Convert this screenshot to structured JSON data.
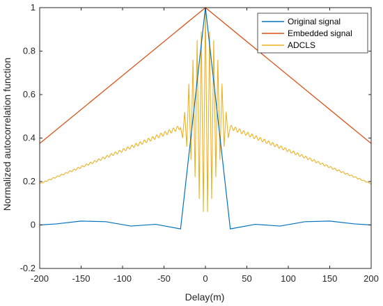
{
  "chart_data": {
    "type": "line",
    "title": "",
    "xlabel": "Delay(m)",
    "ylabel": "Normalized autocorrelation function",
    "xlim": [
      -200,
      200
    ],
    "ylim": [
      -0.2,
      1
    ],
    "xticks": [
      -200,
      -150,
      -100,
      -50,
      0,
      50,
      100,
      150,
      200
    ],
    "xtick_labels": [
      "-200",
      "-150",
      "-100",
      "-50",
      "0",
      "50",
      "100",
      "150",
      "200"
    ],
    "yticks": [
      -0.2,
      0,
      0.2,
      0.4,
      0.6,
      0.8,
      1
    ],
    "ytick_labels": [
      "-0.2",
      "0",
      "0.2",
      "0.4",
      "0.6",
      "0.8",
      "1"
    ],
    "grid": false,
    "legend_position": "top-right",
    "series": [
      {
        "name": "Original signal",
        "color": "#0072BD",
        "x": [
          -200,
          -180,
          -150,
          -120,
          -90,
          -60,
          -30,
          0,
          30,
          60,
          90,
          120,
          150,
          180,
          200
        ],
        "y": [
          0.0,
          0.005,
          0.018,
          0.015,
          -0.005,
          0.003,
          -0.018,
          1.0,
          -0.018,
          0.003,
          -0.005,
          0.015,
          0.018,
          0.005,
          0.0
        ]
      },
      {
        "name": "Embedded signal",
        "color": "#D95319",
        "x": [
          -200,
          0,
          200
        ],
        "y": [
          0.375,
          1.0,
          0.375
        ]
      },
      {
        "name": "ADCLS",
        "color": "#EDB120",
        "envelope": {
          "x": [
            -200,
            -30,
            0,
            30,
            200
          ],
          "y": [
            0.19,
            0.45,
            1.0,
            0.45,
            0.19
          ]
        },
        "peaks": {
          "x": [
            -30,
            -25,
            -20,
            -15,
            -10,
            -5,
            0,
            5,
            10,
            15,
            20,
            25,
            30
          ],
          "y": [
            0.45,
            0.52,
            0.65,
            0.76,
            0.85,
            0.89,
            1.0,
            0.89,
            0.85,
            0.76,
            0.65,
            0.52,
            0.45
          ],
          "troughs": [
            0.4,
            0.36,
            0.3,
            0.22,
            0.12,
            0.06,
            0.06,
            0.12,
            0.22,
            0.3,
            0.36,
            0.4
          ]
        }
      }
    ]
  }
}
